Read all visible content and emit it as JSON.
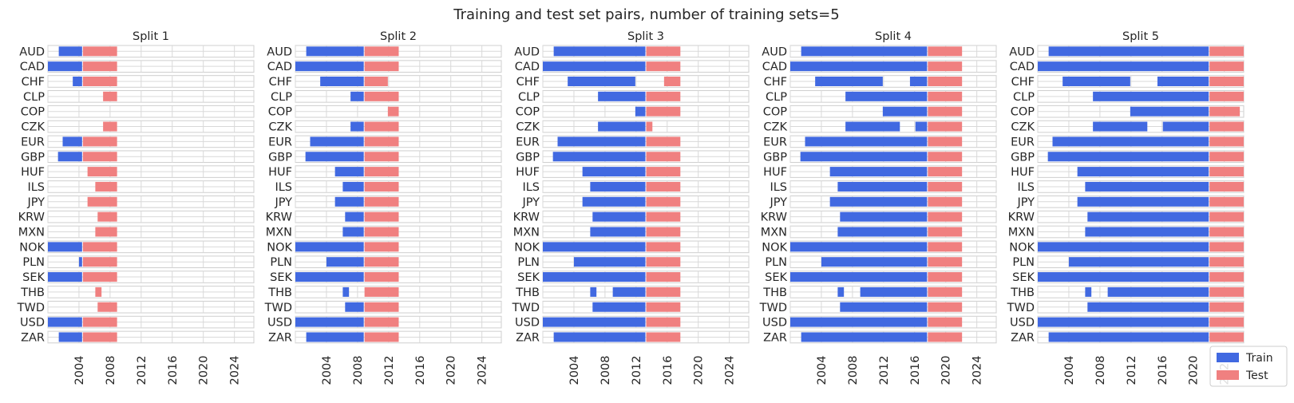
{
  "chart_data": {
    "type": "bar",
    "subtype": "horizontal-interval",
    "title": "Training and test set pairs, number of training sets=5",
    "categories": [
      "AUD",
      "CAD",
      "CHF",
      "CLP",
      "COP",
      "CZK",
      "EUR",
      "GBP",
      "HUF",
      "ILS",
      "JPY",
      "KRW",
      "MXN",
      "NOK",
      "PLN",
      "SEK",
      "THB",
      "TWD",
      "USD",
      "ZAR"
    ],
    "xlim": [
      2000,
      2026.5
    ],
    "xticks": [
      "2004",
      "2008",
      "2012",
      "2016",
      "2020",
      "2024"
    ],
    "grid": true,
    "legend": {
      "position": "lower-right",
      "entries": [
        "Train",
        "Test"
      ]
    },
    "colors": {
      "train": "#4169e1",
      "test": "#f08080",
      "grid": "#d9d9d9",
      "text": "#262626"
    },
    "splits": [
      {
        "title": "Split 1",
        "test": [
          [
            2004.5,
            2008.9
          ],
          [
            2004.5,
            2008.9
          ],
          [
            2004.5,
            2008.9
          ],
          [
            2007.1,
            2008.9
          ],
          [
            null,
            null
          ],
          [
            2007.1,
            2008.9
          ],
          [
            2004.5,
            2008.9
          ],
          [
            2004.5,
            2008.9
          ],
          [
            2005.1,
            2008.9
          ],
          [
            2006.1,
            2008.9
          ],
          [
            2005.1,
            2008.9
          ],
          [
            2006.4,
            2008.9
          ],
          [
            2006.1,
            2008.9
          ],
          [
            2004.5,
            2008.9
          ],
          [
            2004.5,
            2008.9
          ],
          [
            2004.5,
            2008.9
          ],
          [
            2006.1,
            2006.9
          ],
          [
            2006.4,
            2008.9
          ],
          [
            2004.5,
            2008.9
          ],
          [
            2004.5,
            2008.9
          ]
        ],
        "train": [
          [
            [
              2001.4,
              2004.4
            ]
          ],
          [
            [
              2000.0,
              2004.4
            ]
          ],
          [
            [
              2003.2,
              2004.4
            ]
          ],
          [],
          [],
          [],
          [
            [
              2001.9,
              2004.4
            ]
          ],
          [
            [
              2001.3,
              2004.4
            ]
          ],
          [],
          [],
          [],
          [],
          [],
          [
            [
              2000.0,
              2004.4
            ]
          ],
          [
            [
              2004.0,
              2004.4
            ]
          ],
          [
            [
              2000.0,
              2004.4
            ]
          ],
          [],
          [],
          [
            [
              2000.0,
              2004.4
            ]
          ],
          [
            [
              2001.4,
              2004.4
            ]
          ]
        ]
      },
      {
        "title": "Split 2",
        "test": [
          [
            2008.9,
            2013.3
          ],
          [
            2008.9,
            2013.3
          ],
          [
            2008.9,
            2011.9
          ],
          [
            2008.9,
            2013.3
          ],
          [
            2011.9,
            2013.3
          ],
          [
            2008.9,
            2013.3
          ],
          [
            2008.9,
            2013.3
          ],
          [
            2008.9,
            2013.3
          ],
          [
            2008.9,
            2013.3
          ],
          [
            2008.9,
            2013.3
          ],
          [
            2008.9,
            2013.3
          ],
          [
            2008.9,
            2013.3
          ],
          [
            2008.9,
            2013.3
          ],
          [
            2008.9,
            2013.3
          ],
          [
            2008.9,
            2013.3
          ],
          [
            2008.9,
            2013.3
          ],
          [
            2008.9,
            2013.3
          ],
          [
            2008.9,
            2013.3
          ],
          [
            2008.9,
            2013.3
          ],
          [
            2008.9,
            2013.3
          ]
        ],
        "train": [
          [
            [
              2001.4,
              2008.8
            ]
          ],
          [
            [
              2000.0,
              2008.8
            ]
          ],
          [
            [
              2003.2,
              2008.8
            ]
          ],
          [
            [
              2007.1,
              2008.8
            ]
          ],
          [],
          [
            [
              2007.1,
              2008.8
            ]
          ],
          [
            [
              2001.9,
              2008.8
            ]
          ],
          [
            [
              2001.3,
              2008.8
            ]
          ],
          [
            [
              2005.1,
              2008.8
            ]
          ],
          [
            [
              2006.1,
              2008.8
            ]
          ],
          [
            [
              2005.1,
              2008.8
            ]
          ],
          [
            [
              2006.4,
              2008.8
            ]
          ],
          [
            [
              2006.1,
              2008.8
            ]
          ],
          [
            [
              2000.0,
              2008.8
            ]
          ],
          [
            [
              2004.0,
              2008.8
            ]
          ],
          [
            [
              2000.0,
              2008.8
            ]
          ],
          [
            [
              2006.1,
              2006.9
            ]
          ],
          [
            [
              2006.4,
              2008.8
            ]
          ],
          [
            [
              2000.0,
              2008.8
            ]
          ],
          [
            [
              2001.4,
              2008.8
            ]
          ]
        ]
      },
      {
        "title": "Split 3",
        "test": [
          [
            2013.3,
            2017.7
          ],
          [
            2013.3,
            2017.7
          ],
          [
            2015.6,
            2017.7
          ],
          [
            2013.3,
            2017.7
          ],
          [
            2013.3,
            2017.7
          ],
          [
            2013.3,
            2014.1
          ],
          [
            2013.3,
            2017.7
          ],
          [
            2013.3,
            2017.7
          ],
          [
            2013.3,
            2017.7
          ],
          [
            2013.3,
            2017.7
          ],
          [
            2013.3,
            2017.7
          ],
          [
            2013.3,
            2017.7
          ],
          [
            2013.3,
            2017.7
          ],
          [
            2013.3,
            2017.7
          ],
          [
            2013.3,
            2017.7
          ],
          [
            2013.3,
            2017.7
          ],
          [
            2013.3,
            2017.7
          ],
          [
            2013.3,
            2017.7
          ],
          [
            2013.3,
            2017.7
          ],
          [
            2013.3,
            2017.7
          ]
        ],
        "train": [
          [
            [
              2001.4,
              2013.2
            ]
          ],
          [
            [
              2000.0,
              2013.2
            ]
          ],
          [
            [
              2003.2,
              2011.9
            ]
          ],
          [
            [
              2007.1,
              2013.2
            ]
          ],
          [
            [
              2011.9,
              2013.2
            ]
          ],
          [
            [
              2007.1,
              2013.2
            ]
          ],
          [
            [
              2001.9,
              2013.2
            ]
          ],
          [
            [
              2001.3,
              2013.2
            ]
          ],
          [
            [
              2005.1,
              2013.2
            ]
          ],
          [
            [
              2006.1,
              2013.2
            ]
          ],
          [
            [
              2005.1,
              2013.2
            ]
          ],
          [
            [
              2006.4,
              2013.2
            ]
          ],
          [
            [
              2006.1,
              2013.2
            ]
          ],
          [
            [
              2000.0,
              2013.2
            ]
          ],
          [
            [
              2004.0,
              2013.2
            ]
          ],
          [
            [
              2000.0,
              2013.2
            ]
          ],
          [
            [
              2006.1,
              2006.9
            ],
            [
              2009.0,
              2013.2
            ]
          ],
          [
            [
              2006.4,
              2013.2
            ]
          ],
          [
            [
              2000.0,
              2013.2
            ]
          ],
          [
            [
              2001.4,
              2013.2
            ]
          ]
        ]
      },
      {
        "title": "Split 4",
        "test": [
          [
            2017.7,
            2022.1
          ],
          [
            2017.7,
            2022.1
          ],
          [
            2017.7,
            2022.1
          ],
          [
            2017.7,
            2022.1
          ],
          [
            2017.7,
            2022.1
          ],
          [
            2017.7,
            2022.1
          ],
          [
            2017.7,
            2022.1
          ],
          [
            2017.7,
            2022.1
          ],
          [
            2017.7,
            2022.1
          ],
          [
            2017.7,
            2022.1
          ],
          [
            2017.7,
            2022.1
          ],
          [
            2017.7,
            2022.1
          ],
          [
            2017.7,
            2022.1
          ],
          [
            2017.7,
            2022.1
          ],
          [
            2017.7,
            2022.1
          ],
          [
            2017.7,
            2022.1
          ],
          [
            2017.7,
            2022.1
          ],
          [
            2017.7,
            2022.1
          ],
          [
            2017.7,
            2022.1
          ],
          [
            2017.7,
            2022.1
          ]
        ],
        "train": [
          [
            [
              2001.4,
              2017.6
            ]
          ],
          [
            [
              2000.0,
              2017.6
            ]
          ],
          [
            [
              2003.2,
              2011.9
            ],
            [
              2015.4,
              2017.6
            ]
          ],
          [
            [
              2007.1,
              2017.6
            ]
          ],
          [
            [
              2011.9,
              2017.6
            ]
          ],
          [
            [
              2007.1,
              2014.1
            ],
            [
              2016.1,
              2017.6
            ]
          ],
          [
            [
              2001.9,
              2017.6
            ]
          ],
          [
            [
              2001.3,
              2017.6
            ]
          ],
          [
            [
              2005.1,
              2017.6
            ]
          ],
          [
            [
              2006.1,
              2017.6
            ]
          ],
          [
            [
              2005.1,
              2017.6
            ]
          ],
          [
            [
              2006.4,
              2017.6
            ]
          ],
          [
            [
              2006.1,
              2017.6
            ]
          ],
          [
            [
              2000.0,
              2017.6
            ]
          ],
          [
            [
              2004.0,
              2017.6
            ]
          ],
          [
            [
              2000.0,
              2017.6
            ]
          ],
          [
            [
              2006.1,
              2006.9
            ],
            [
              2009.0,
              2017.6
            ]
          ],
          [
            [
              2006.4,
              2017.6
            ]
          ],
          [
            [
              2000.0,
              2017.6
            ]
          ],
          [
            [
              2001.4,
              2017.6
            ]
          ]
        ]
      },
      {
        "title": "Split 5",
        "test": [
          [
            2022.1,
            2026.5
          ],
          [
            2022.1,
            2026.5
          ],
          [
            2022.1,
            2026.5
          ],
          [
            2022.1,
            2026.5
          ],
          [
            2022.1,
            2026.0
          ],
          [
            2022.1,
            2026.5
          ],
          [
            2022.1,
            2026.5
          ],
          [
            2022.1,
            2026.5
          ],
          [
            2022.1,
            2026.5
          ],
          [
            2022.1,
            2026.5
          ],
          [
            2022.1,
            2026.5
          ],
          [
            2022.1,
            2026.5
          ],
          [
            2022.1,
            2026.5
          ],
          [
            2022.1,
            2026.5
          ],
          [
            2022.1,
            2026.5
          ],
          [
            2022.1,
            2026.5
          ],
          [
            2022.1,
            2026.5
          ],
          [
            2022.1,
            2026.5
          ],
          [
            2022.1,
            2026.5
          ],
          [
            2022.1,
            2026.5
          ]
        ],
        "train": [
          [
            [
              2001.4,
              2022.0
            ]
          ],
          [
            [
              2000.0,
              2022.0
            ]
          ],
          [
            [
              2003.2,
              2011.9
            ],
            [
              2015.4,
              2022.0
            ]
          ],
          [
            [
              2007.1,
              2022.0
            ]
          ],
          [
            [
              2011.9,
              2022.0
            ]
          ],
          [
            [
              2007.1,
              2014.1
            ],
            [
              2016.1,
              2022.0
            ]
          ],
          [
            [
              2001.9,
              2022.0
            ]
          ],
          [
            [
              2001.3,
              2022.0
            ]
          ],
          [
            [
              2005.1,
              2022.0
            ]
          ],
          [
            [
              2006.1,
              2022.0
            ]
          ],
          [
            [
              2005.1,
              2022.0
            ]
          ],
          [
            [
              2006.4,
              2022.0
            ]
          ],
          [
            [
              2006.1,
              2022.0
            ]
          ],
          [
            [
              2000.0,
              2022.0
            ]
          ],
          [
            [
              2004.0,
              2022.0
            ]
          ],
          [
            [
              2000.0,
              2022.0
            ]
          ],
          [
            [
              2006.1,
              2006.9
            ],
            [
              2009.0,
              2022.0
            ]
          ],
          [
            [
              2006.4,
              2022.0
            ]
          ],
          [
            [
              2000.0,
              2022.0
            ]
          ],
          [
            [
              2001.4,
              2022.0
            ]
          ]
        ]
      }
    ]
  }
}
